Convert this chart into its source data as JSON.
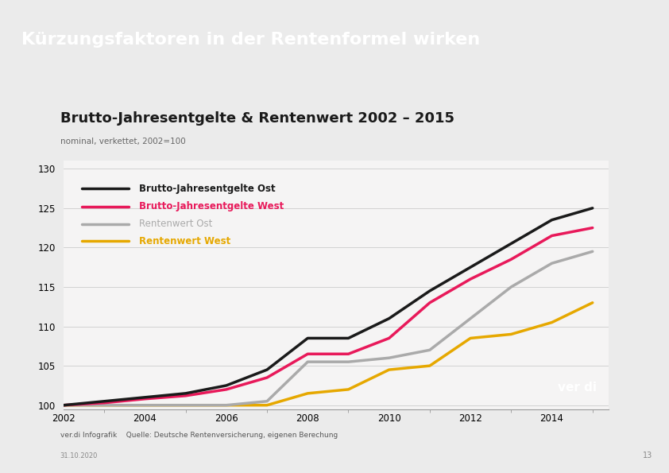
{
  "title": "Kürzungsfaktoren in der Rentenformel wirken",
  "subtitle": "Brutto-Jahresentgelte & Rentenwert 2002 – 2015",
  "subtitle2": "nominal, verkettet, 2002=100",
  "footer_left": "ver.di Infografik",
  "footer_source": "Quelle: Deutsche Rentenversicherung, eigenen Berechung",
  "footer_date": "31.10.2020",
  "page_number": "13",
  "years": [
    2002,
    2003,
    2004,
    2005,
    2006,
    2007,
    2008,
    2009,
    2010,
    2011,
    2012,
    2013,
    2014,
    2015
  ],
  "brutto_ost": [
    100,
    100.5,
    101.0,
    101.5,
    102.5,
    104.5,
    108.5,
    108.5,
    111.0,
    114.5,
    117.5,
    120.5,
    123.5,
    125.0
  ],
  "brutto_west": [
    100,
    100.3,
    100.8,
    101.2,
    102.0,
    103.5,
    106.5,
    106.5,
    108.5,
    113.0,
    116.0,
    118.5,
    121.5,
    122.5
  ],
  "rentenwert_ost": [
    100,
    100.0,
    100.0,
    100.0,
    100.0,
    100.5,
    105.5,
    105.5,
    106.0,
    107.0,
    111.0,
    115.0,
    118.0,
    119.5
  ],
  "rentenwert_west": [
    100,
    100.0,
    100.0,
    100.0,
    100.0,
    100.0,
    101.5,
    102.0,
    104.5,
    105.0,
    108.5,
    109.0,
    110.5,
    113.0
  ],
  "color_brutto_ost": "#1a1a1a",
  "color_brutto_west": "#e8195a",
  "color_rentenwert_ost": "#aaaaaa",
  "color_rentenwert_west": "#e6a800",
  "header_bg_color": "#d81b47",
  "header_text_color": "#ffffff",
  "background_color": "#ebebeb",
  "plot_bg_color": "#f5f4f4",
  "ylim": [
    99.5,
    131
  ],
  "yticks": [
    100,
    105,
    110,
    115,
    120,
    125,
    130
  ],
  "xticks": [
    2002,
    2004,
    2006,
    2008,
    2010,
    2012,
    2014
  ],
  "line_width": 2.5,
  "legend_labels": [
    "Brutto-Jahresentgelte Ost",
    "Brutto-Jahresentgelte West",
    "Rentenwert Ost",
    "Rentenwert West"
  ],
  "legend_bold": [
    true,
    true,
    false,
    true
  ]
}
